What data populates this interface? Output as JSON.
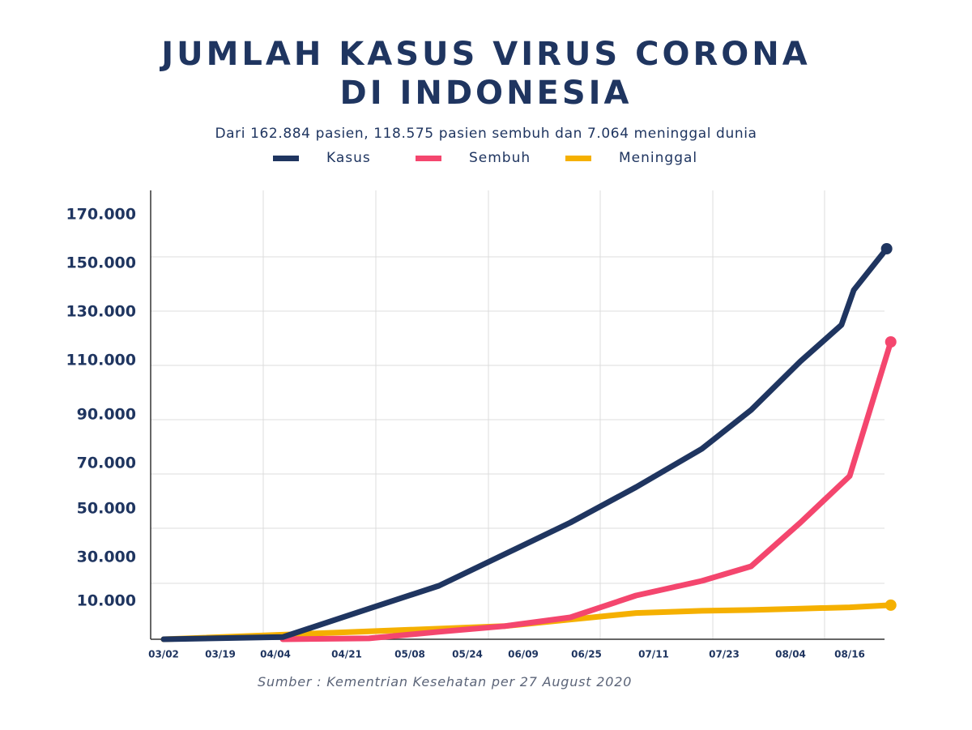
{
  "title_line1": "JUMLAH KASUS VIRUS CORONA",
  "title_line2": "DI INDONESIA",
  "subtitle": "Dari 162.884 pasien, 118.575 pasien sembuh dan 7.064 meninggal dunia",
  "source": "Sumber : Kementrian Kesehatan per 27 August 2020",
  "legend": [
    {
      "label": "Kasus",
      "color": "#1f3560"
    },
    {
      "label": "Sembuh",
      "color": "#f4466e"
    },
    {
      "label": "Meninggal",
      "color": "#f5b000"
    }
  ],
  "chart_data": {
    "type": "line",
    "title": "JUMLAH KASUS VIRUS CORONA DI INDONESIA",
    "subtitle": "Dari 162.884 pasien, 118.575 pasien sembuh dan 7.064 meninggal dunia",
    "xlabel": "",
    "ylabel": "",
    "x_tick_labels": [
      "03/02",
      "03/19",
      "04/04",
      "04/21",
      "05/08",
      "05/24",
      "06/09",
      "06/25",
      "07/11",
      "07/23",
      "08/04",
      "08/16"
    ],
    "y_tick_labels": [
      "10.000",
      "30.000",
      "50.000",
      "70.000",
      "90.000",
      "110.000",
      "130.000",
      "150.000",
      "170.000"
    ],
    "ylim": [
      0,
      170000
    ],
    "grid": true,
    "legend_position": "top",
    "series": [
      {
        "name": "Kasus",
        "color": "#1f3560",
        "points": [
          [
            "03/02",
            0
          ],
          [
            "03/31",
            500
          ],
          [
            "04/21",
            7000
          ],
          [
            "05/08",
            14000
          ],
          [
            "05/24",
            27000
          ],
          [
            "06/09",
            40000
          ],
          [
            "06/25",
            55000
          ],
          [
            "07/11",
            72000
          ],
          [
            "07/23",
            88000
          ],
          [
            "08/04",
            108000
          ],
          [
            "08/14",
            123000
          ],
          [
            "08/17",
            138000
          ],
          [
            "08/25",
            156000
          ]
        ],
        "end_marker": true
      },
      {
        "name": "Sembuh",
        "color": "#f4466e",
        "points": [
          [
            "03/31",
            0
          ],
          [
            "04/21",
            200
          ],
          [
            "05/08",
            1700
          ],
          [
            "05/24",
            3000
          ],
          [
            "06/09",
            5000
          ],
          [
            "06/25",
            10000
          ],
          [
            "07/11",
            16000
          ],
          [
            "07/23",
            22000
          ],
          [
            "08/04",
            40000
          ],
          [
            "08/16",
            60000
          ],
          [
            "08/26",
            116000
          ]
        ],
        "end_marker": true
      },
      {
        "name": "Meninggal",
        "color": "#f5b000",
        "points": [
          [
            "03/02",
            0
          ],
          [
            "05/24",
            3000
          ],
          [
            "06/09",
            4500
          ],
          [
            "06/25",
            6000
          ],
          [
            "07/11",
            6500
          ],
          [
            "07/23",
            6700
          ],
          [
            "08/04",
            7000
          ],
          [
            "08/16",
            7300
          ],
          [
            "08/26",
            7800
          ]
        ],
        "end_marker": true
      }
    ]
  }
}
